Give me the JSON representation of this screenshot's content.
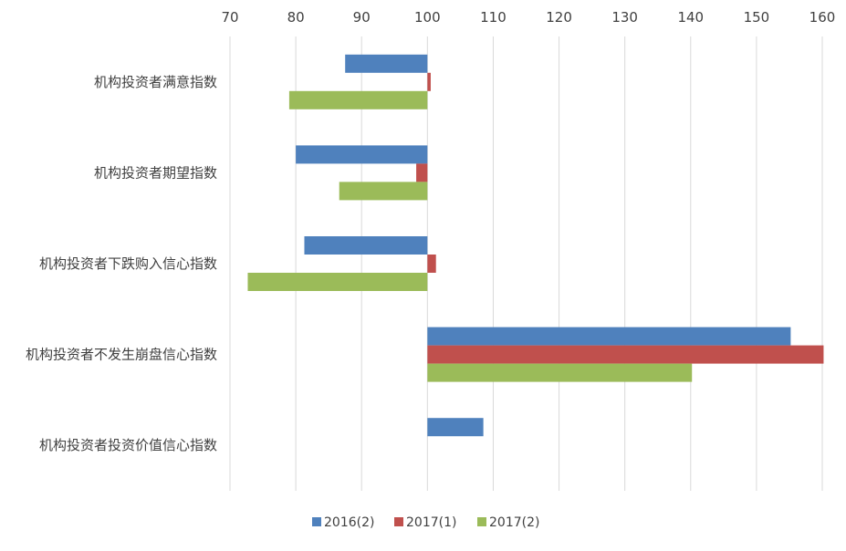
{
  "chart_data": {
    "type": "bar",
    "orientation": "horizontal",
    "categories": [
      "机构投资者满意指数",
      "机构投资者期望指数",
      "机构投资者下跌购入信心指数",
      "机构投资者不发生崩盘信心指数",
      "机构投资者投资价值信心指数"
    ],
    "series": [
      {
        "name": "2016(2)",
        "color": "#4F81BD",
        "values": [
          87.5,
          80.0,
          81.3,
          155.2,
          108.5
        ]
      },
      {
        "name": "2017(1)",
        "color": "#C0504D",
        "values": [
          100.5,
          98.3,
          101.3,
          160.2,
          null
        ]
      },
      {
        "name": "2017(2)",
        "color": "#9BBB59",
        "values": [
          79.0,
          86.6,
          72.7,
          140.2,
          null
        ]
      }
    ],
    "baseline": 100,
    "xlim": [
      70,
      160
    ],
    "xticks": [
      70,
      80,
      90,
      100,
      110,
      120,
      130,
      140,
      150,
      160
    ],
    "axis_position": "top",
    "grid": true,
    "legend_position": "bottom",
    "title": "",
    "xlabel": "",
    "ylabel": ""
  }
}
